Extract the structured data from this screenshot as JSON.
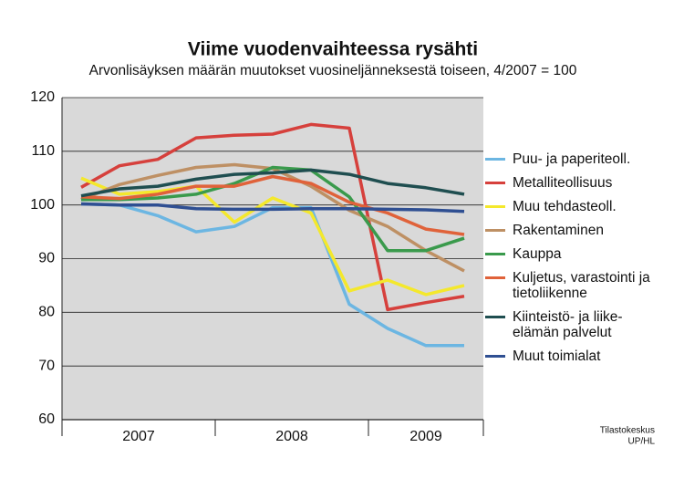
{
  "chart_data": {
    "type": "line",
    "title": "Viime vuodenvaihteessa rysähti",
    "subtitle": "Arvonlisäyksen määrän muutokset vuosineljänneksestä toiseen, 4/2007 = 100",
    "source": [
      "Tilastokeskus",
      "UP/HL"
    ],
    "categories": [
      null,
      null,
      null,
      null,
      null,
      null,
      null,
      null,
      null,
      null,
      null
    ],
    "year_labels": [
      "2007",
      "2008",
      "2009"
    ],
    "ylim": [
      60,
      120
    ],
    "yticks": [
      60,
      70,
      80,
      90,
      100,
      110,
      120
    ],
    "grid": true,
    "series": [
      {
        "name": "Puu- ja paperiteoll.",
        "color": "#6cb6e2",
        "values": [
          100.2,
          100,
          98,
          95,
          96,
          99.5,
          99.5,
          81.5,
          77,
          73.8,
          73.8
        ]
      },
      {
        "name": "Metalliteollisuus",
        "color": "#d6403c",
        "values": [
          103.3,
          107.3,
          108.5,
          112.5,
          113,
          113.2,
          115,
          114.3,
          80.5,
          81.8,
          83
        ]
      },
      {
        "name": "Muu tehdasteoll.",
        "color": "#f4e82c",
        "values": [
          105,
          102,
          102.5,
          103.5,
          96.8,
          101.3,
          98.5,
          84,
          86,
          83.3,
          85
        ]
      },
      {
        "name": "Rakentaminen",
        "color": "#be9064",
        "values": [
          101,
          103.8,
          105.5,
          107,
          107.5,
          106.8,
          103.5,
          99,
          96,
          91.5,
          87.7
        ]
      },
      {
        "name": "Kauppa",
        "color": "#3a9a4c",
        "values": [
          101,
          101,
          101.3,
          102,
          104,
          107,
          106.5,
          101.5,
          91.5,
          91.5,
          93.8
        ]
      },
      {
        "name": "Kuljetus, varastointi ja tietoliikenne",
        "color": "#e0623a",
        "values": [
          101.5,
          101.2,
          102,
          103.5,
          103.5,
          105.3,
          104,
          100.5,
          98.5,
          95.5,
          94.5
        ]
      },
      {
        "name": "Kiinteistö- ja liike-elämän palvelut",
        "color": "#1f4e50",
        "values": [
          101.7,
          103,
          103.5,
          104.8,
          105.7,
          106,
          106.5,
          105.7,
          104,
          103.2,
          102
        ]
      },
      {
        "name": "Muut toimialat",
        "color": "#2f4f92",
        "values": [
          100.2,
          100,
          100,
          99.3,
          99.2,
          99.2,
          99.3,
          99.3,
          99.2,
          99.1,
          98.8
        ]
      }
    ]
  }
}
